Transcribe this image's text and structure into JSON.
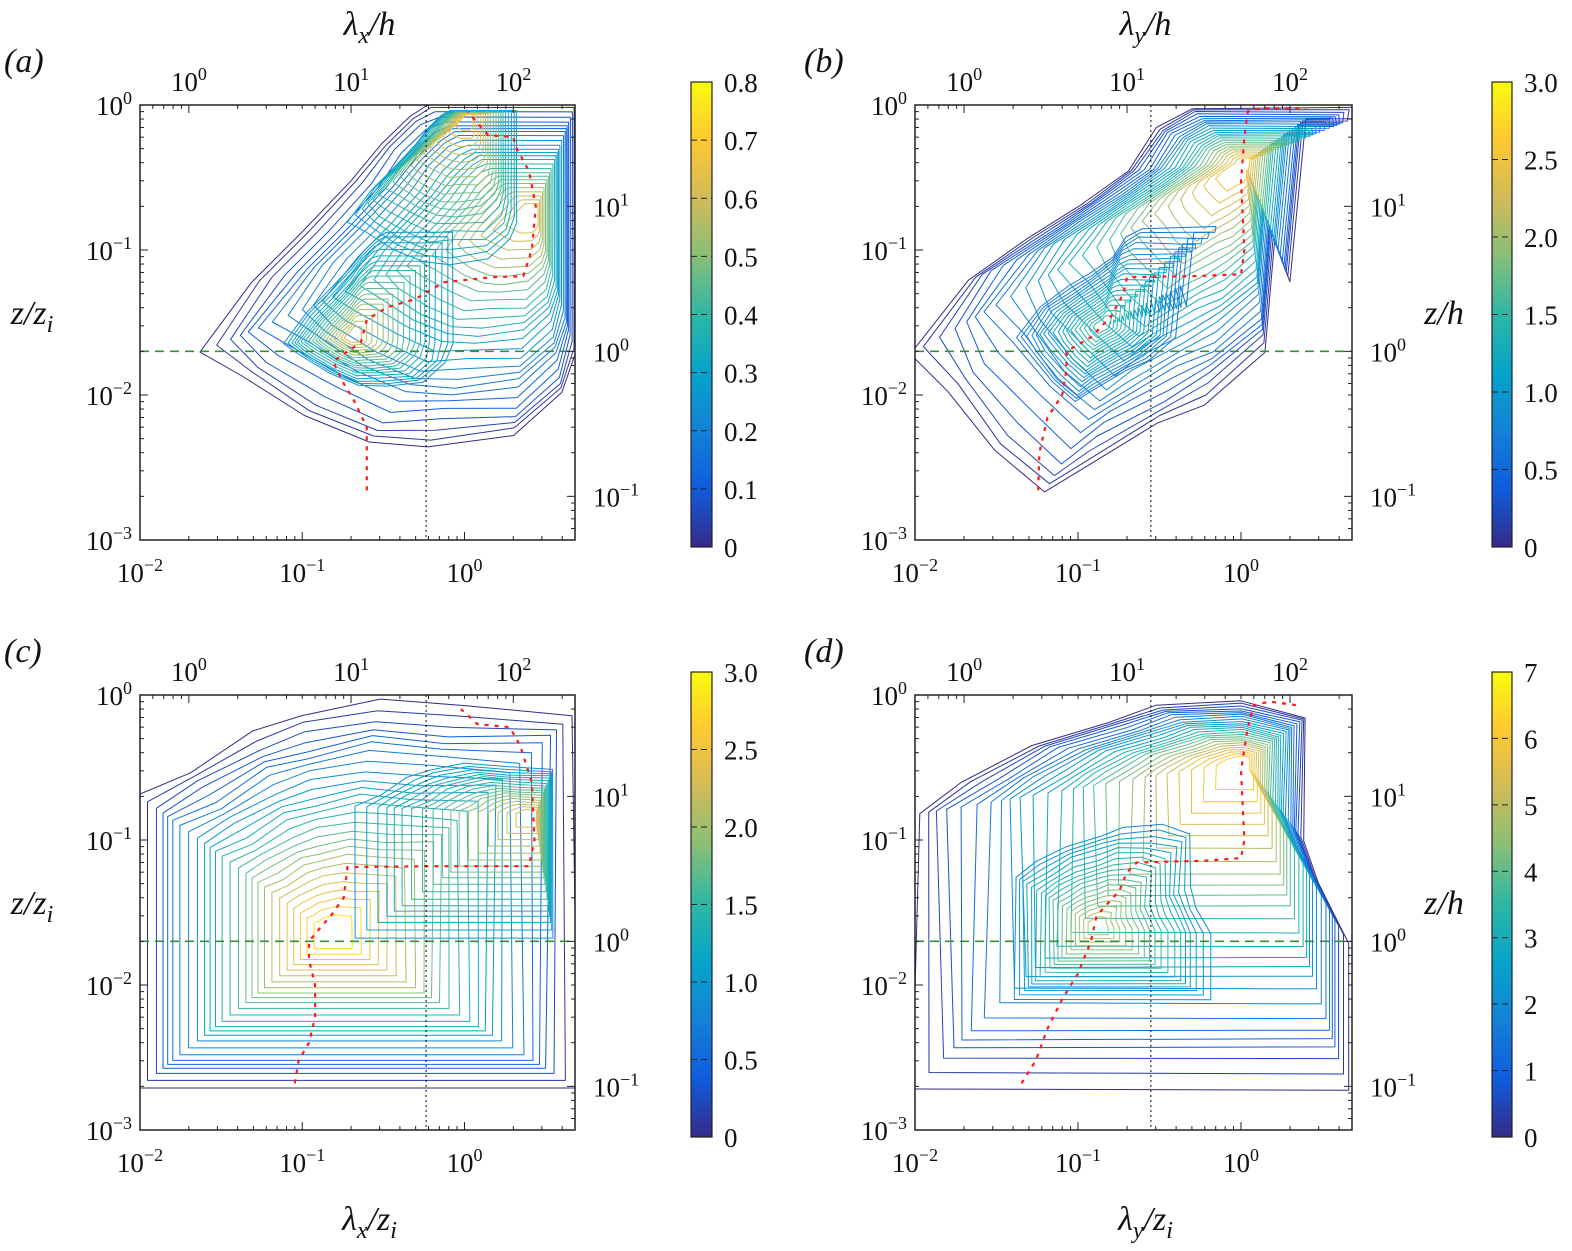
{
  "chart_data": [
    {
      "panel_label": "(a)",
      "type": "contour",
      "xscale": "log",
      "yscale": "log",
      "xlim": [
        0.01,
        4.8
      ],
      "ylim": [
        0.001,
        1
      ],
      "xticks": [
        0.01,
        0.1,
        1
      ],
      "yticks": [
        0.001,
        0.01,
        0.1,
        1
      ],
      "top_axis": {
        "label": {
          "main": "λ",
          "sub": "x",
          "tail": "/h"
        },
        "ticks": [
          1,
          10,
          100
        ]
      },
      "bottom_axis": {
        "label": null
      },
      "left_axis": {
        "label": {
          "main": "z/z",
          "sub": "i",
          "tail": ""
        }
      },
      "right_axis": {
        "label": null,
        "ticks": [
          0.1,
          1,
          10
        ]
      },
      "colorbar": {
        "min": 0,
        "max": 0.8,
        "ticks": [
          "0",
          "0.1",
          "0.2",
          "0.3",
          "0.4",
          "0.5",
          "0.6",
          "0.7",
          "0.8"
        ]
      },
      "hline_z_over_zi": 0.02,
      "vline_lambda_over_zi": 0.58,
      "peaks": [
        {
          "lambda": 2.7,
          "z": 0.18,
          "value": 0.65
        },
        {
          "lambda": 0.2,
          "z": 0.025,
          "value": 0.62
        },
        {
          "lambda": 1.05,
          "z": 0.85,
          "value": 0.7
        }
      ],
      "envelope": [
        [
          0.024,
          0.02
        ],
        [
          0.05,
          0.06
        ],
        [
          0.1,
          0.13
        ],
        [
          0.2,
          0.3
        ],
        [
          0.3,
          0.55
        ],
        [
          0.45,
          0.85
        ],
        [
          0.6,
          1
        ],
        [
          4.8,
          1
        ],
        [
          4.8,
          0.02
        ],
        [
          4,
          0.01
        ],
        [
          2,
          0.005
        ],
        [
          0.6,
          0.0045
        ],
        [
          0.25,
          0.0045
        ],
        [
          0.1,
          0.007
        ],
        [
          0.04,
          0.013
        ]
      ],
      "ridge": [
        [
          0.25,
          0.0022
        ],
        [
          0.25,
          0.006
        ],
        [
          0.21,
          0.009
        ],
        [
          0.18,
          0.012
        ],
        [
          0.155,
          0.017
        ],
        [
          0.19,
          0.02
        ],
        [
          0.23,
          0.023
        ],
        [
          0.25,
          0.033
        ],
        [
          0.33,
          0.04
        ],
        [
          0.5,
          0.046
        ],
        [
          0.75,
          0.06
        ],
        [
          1.5,
          0.065
        ],
        [
          2.3,
          0.066
        ],
        [
          2.6,
          0.1
        ],
        [
          2.75,
          0.2
        ],
        [
          2.5,
          0.35
        ],
        [
          2.1,
          0.5
        ],
        [
          2.0,
          0.6
        ],
        [
          1.4,
          0.62
        ],
        [
          1.2,
          0.75
        ],
        [
          1.05,
          0.9
        ]
      ]
    },
    {
      "panel_label": "(b)",
      "type": "contour",
      "xscale": "log",
      "yscale": "log",
      "xlim": [
        0.01,
        4.8
      ],
      "ylim": [
        0.001,
        1
      ],
      "xticks": [
        0.01,
        0.1,
        1
      ],
      "yticks": [
        0.001,
        0.01,
        0.1,
        1
      ],
      "top_axis": {
        "label": {
          "main": "λ",
          "sub": "y",
          "tail": "/h"
        },
        "ticks": [
          1,
          10,
          100
        ]
      },
      "bottom_axis": {
        "label": null
      },
      "left_axis": {
        "label": null
      },
      "right_axis": {
        "label": {
          "main": "z/h",
          "sub": "",
          "tail": ""
        },
        "ticks": [
          0.1,
          1,
          10
        ]
      },
      "colorbar": {
        "min": 0,
        "max": 3.0,
        "ticks": [
          "0",
          "0.5",
          "1.0",
          "1.5",
          "2.0",
          "2.5",
          "3.0"
        ]
      },
      "hline_z_over_zi": 0.02,
      "vline_lambda_over_zi": 0.28,
      "peaks": [
        {
          "lambda": 1.05,
          "z": 0.4,
          "value": 2.6
        },
        {
          "lambda": 0.14,
          "z": 0.03,
          "value": 1.6
        }
      ],
      "envelope": [
        [
          0.01,
          0.02
        ],
        [
          0.02,
          0.06
        ],
        [
          0.05,
          0.12
        ],
        [
          0.1,
          0.2
        ],
        [
          0.2,
          0.35
        ],
        [
          0.3,
          0.7
        ],
        [
          0.5,
          0.95
        ],
        [
          4.8,
          0.95
        ],
        [
          4.8,
          0.8
        ],
        [
          2.5,
          0.8
        ],
        [
          2.0,
          0.06
        ],
        [
          1.6,
          0.12
        ],
        [
          1.4,
          0.02
        ],
        [
          0.6,
          0.009
        ],
        [
          0.3,
          0.006
        ],
        [
          0.1,
          0.003
        ],
        [
          0.06,
          0.002
        ],
        [
          0.03,
          0.004
        ],
        [
          0.015,
          0.01
        ]
      ],
      "ridge": [
        [
          0.057,
          0.0022
        ],
        [
          0.058,
          0.004
        ],
        [
          0.065,
          0.007
        ],
        [
          0.08,
          0.01
        ],
        [
          0.085,
          0.015
        ],
        [
          0.085,
          0.02
        ],
        [
          0.12,
          0.025
        ],
        [
          0.16,
          0.035
        ],
        [
          0.19,
          0.05
        ],
        [
          0.2,
          0.065
        ],
        [
          0.5,
          0.066
        ],
        [
          1.0,
          0.068
        ],
        [
          1.05,
          0.1
        ],
        [
          1.0,
          0.3
        ],
        [
          1.05,
          0.6
        ],
        [
          1.1,
          0.9
        ],
        [
          1.3,
          0.95
        ],
        [
          2.5,
          0.95
        ]
      ]
    },
    {
      "panel_label": "(c)",
      "type": "contour",
      "xscale": "log",
      "yscale": "log",
      "xlim": [
        0.01,
        4.8
      ],
      "ylim": [
        0.001,
        1
      ],
      "xticks": [
        0.01,
        0.1,
        1
      ],
      "yticks": [
        0.001,
        0.01,
        0.1,
        1
      ],
      "top_axis": {
        "label": null,
        "ticks": [
          1,
          10,
          100
        ]
      },
      "bottom_axis": {
        "label": {
          "main": "λ",
          "sub": "x",
          "tail": "/z",
          "sub2": "i"
        }
      },
      "left_axis": {
        "label": {
          "main": "z/z",
          "sub": "i",
          "tail": ""
        }
      },
      "right_axis": {
        "label": null,
        "ticks": [
          0.1,
          1,
          10
        ]
      },
      "colorbar": {
        "min": 0,
        "max": 3.0,
        "ticks": [
          "0",
          "0.5",
          "1.0",
          "1.5",
          "2.0",
          "2.5",
          "3.0"
        ]
      },
      "hline_z_over_zi": 0.02,
      "vline_lambda_over_zi": 0.58,
      "peaks": [
        {
          "lambda": 0.15,
          "z": 0.022,
          "value": 2.9
        },
        {
          "lambda": 2.7,
          "z": 0.15,
          "value": 2.4
        }
      ],
      "envelope": [
        [
          0.01,
          0.002
        ],
        [
          0.01,
          0.2
        ],
        [
          0.02,
          0.3
        ],
        [
          0.05,
          0.55
        ],
        [
          0.1,
          0.7
        ],
        [
          0.3,
          0.9
        ],
        [
          1,
          0.8
        ],
        [
          4.8,
          0.75
        ],
        [
          4.8,
          0.002
        ]
      ],
      "ridge": [
        [
          0.09,
          0.0021
        ],
        [
          0.095,
          0.003
        ],
        [
          0.11,
          0.004
        ],
        [
          0.12,
          0.006
        ],
        [
          0.12,
          0.01
        ],
        [
          0.11,
          0.015
        ],
        [
          0.11,
          0.02
        ],
        [
          0.13,
          0.025
        ],
        [
          0.15,
          0.03
        ],
        [
          0.18,
          0.04
        ],
        [
          0.19,
          0.065
        ],
        [
          0.6,
          0.066
        ],
        [
          2.5,
          0.066
        ],
        [
          2.7,
          0.1
        ],
        [
          2.6,
          0.25
        ],
        [
          2.2,
          0.45
        ],
        [
          1.9,
          0.6
        ],
        [
          1.2,
          0.63
        ],
        [
          0.95,
          0.8
        ]
      ]
    },
    {
      "panel_label": "(d)",
      "type": "contour",
      "xscale": "log",
      "yscale": "log",
      "xlim": [
        0.01,
        4.8
      ],
      "ylim": [
        0.001,
        1
      ],
      "xticks": [
        0.01,
        0.1,
        1
      ],
      "yticks": [
        0.001,
        0.01,
        0.1,
        1
      ],
      "top_axis": {
        "label": null,
        "ticks": [
          1,
          10,
          100
        ]
      },
      "bottom_axis": {
        "label": {
          "main": "λ",
          "sub": "y",
          "tail": "/z",
          "sub2": "i"
        }
      },
      "left_axis": {
        "label": null
      },
      "right_axis": {
        "label": {
          "main": "z/h",
          "sub": "",
          "tail": ""
        },
        "ticks": [
          0.1,
          1,
          10
        ]
      },
      "colorbar": {
        "min": 0,
        "max": 7,
        "ticks": [
          "0",
          "1",
          "2",
          "3",
          "4",
          "5",
          "6",
          "7"
        ]
      },
      "hline_z_over_zi": 0.02,
      "vline_lambda_over_zi": 0.28,
      "peaks": [
        {
          "lambda": 1.05,
          "z": 0.35,
          "value": 6.5
        },
        {
          "lambda": 0.13,
          "z": 0.025,
          "value": 5.2
        }
      ],
      "envelope": [
        [
          0.01,
          0.002
        ],
        [
          0.01,
          0.15
        ],
        [
          0.02,
          0.25
        ],
        [
          0.05,
          0.45
        ],
        [
          0.15,
          0.65
        ],
        [
          0.3,
          0.85
        ],
        [
          1,
          0.9
        ],
        [
          2.5,
          0.7
        ],
        [
          2.4,
          0.1
        ],
        [
          3,
          0.05
        ],
        [
          4.5,
          0.02
        ],
        [
          4.5,
          0.002
        ]
      ],
      "ridge": [
        [
          0.045,
          0.0021
        ],
        [
          0.055,
          0.003
        ],
        [
          0.065,
          0.005
        ],
        [
          0.08,
          0.008
        ],
        [
          0.1,
          0.012
        ],
        [
          0.12,
          0.02
        ],
        [
          0.13,
          0.03
        ],
        [
          0.18,
          0.045
        ],
        [
          0.2,
          0.06
        ],
        [
          0.23,
          0.07
        ],
        [
          0.6,
          0.072
        ],
        [
          1.0,
          0.075
        ],
        [
          1.05,
          0.1
        ],
        [
          1.0,
          0.3
        ],
        [
          1.1,
          0.6
        ],
        [
          1.2,
          0.85
        ],
        [
          1.5,
          0.9
        ],
        [
          2.2,
          0.85
        ]
      ]
    }
  ],
  "colors": {
    "colormap": [
      "#352a87",
      "#0f5cdd",
      "#1481d6",
      "#06a4ca",
      "#2eb7a4",
      "#87bf77",
      "#d1bb59",
      "#fec832",
      "#f9fb0e"
    ],
    "hline": "#3c8c3c",
    "vline": "#000000",
    "ridge": "#ff1a1a"
  }
}
